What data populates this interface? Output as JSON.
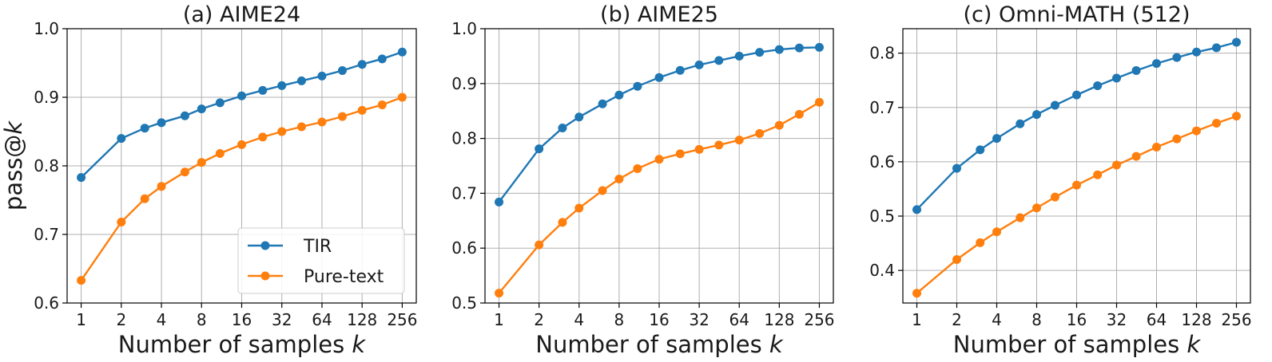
{
  "figure": {
    "ylabel": "pass@k",
    "legend": {
      "placement": "lower-right",
      "entries": [
        {
          "name": "TIR",
          "color": "#1f77b4"
        },
        {
          "name": "Pure-text",
          "color": "#ff7f0e"
        }
      ]
    }
  },
  "chart_data": [
    {
      "type": "line",
      "title": "(a) AIME24",
      "xlabel": "Number of samples k",
      "x_scale": "log2",
      "x": [
        1,
        2,
        3,
        4,
        6,
        8,
        11,
        16,
        23,
        32,
        45,
        64,
        91,
        128,
        181,
        256
      ],
      "xticks": [
        1,
        2,
        4,
        8,
        16,
        32,
        64,
        128,
        256
      ],
      "ylim": [
        0.6,
        1.0
      ],
      "yticks": [
        0.6,
        0.7,
        0.8,
        0.9,
        1.0
      ],
      "grid": true,
      "series": [
        {
          "name": "TIR",
          "color": "#1f77b4",
          "values": [
            0.783,
            0.84,
            0.855,
            0.863,
            0.873,
            0.883,
            0.892,
            0.902,
            0.91,
            0.917,
            0.924,
            0.931,
            0.939,
            0.948,
            0.956,
            0.966
          ]
        },
        {
          "name": "Pure-text",
          "color": "#ff7f0e",
          "values": [
            0.633,
            0.718,
            0.752,
            0.77,
            0.791,
            0.805,
            0.818,
            0.831,
            0.842,
            0.85,
            0.857,
            0.864,
            0.872,
            0.881,
            0.889,
            0.9
          ]
        }
      ]
    },
    {
      "type": "line",
      "title": "(b) AIME25",
      "xlabel": "Number of samples k",
      "x_scale": "log2",
      "x": [
        1,
        2,
        3,
        4,
        6,
        8,
        11,
        16,
        23,
        32,
        45,
        64,
        91,
        128,
        181,
        256
      ],
      "xticks": [
        1,
        2,
        4,
        8,
        16,
        32,
        64,
        128,
        256
      ],
      "ylim": [
        0.5,
        1.0
      ],
      "yticks": [
        0.5,
        0.6,
        0.7,
        0.8,
        0.9,
        1.0
      ],
      "grid": true,
      "series": [
        {
          "name": "TIR",
          "color": "#1f77b4",
          "values": [
            0.684,
            0.781,
            0.819,
            0.839,
            0.863,
            0.879,
            0.895,
            0.911,
            0.924,
            0.934,
            0.942,
            0.95,
            0.957,
            0.962,
            0.965,
            0.966
          ]
        },
        {
          "name": "Pure-text",
          "color": "#ff7f0e",
          "values": [
            0.518,
            0.606,
            0.647,
            0.673,
            0.705,
            0.726,
            0.745,
            0.762,
            0.772,
            0.78,
            0.788,
            0.797,
            0.809,
            0.824,
            0.844,
            0.866
          ]
        }
      ]
    },
    {
      "type": "line",
      "title": "(c) Omni-MATH (512)",
      "xlabel": "Number of samples k",
      "x_scale": "log2",
      "x": [
        1,
        2,
        3,
        4,
        6,
        8,
        11,
        16,
        23,
        32,
        45,
        64,
        91,
        128,
        181,
        256
      ],
      "xticks": [
        1,
        2,
        4,
        8,
        16,
        32,
        64,
        128,
        256
      ],
      "ylim": [
        0.34,
        0.845
      ],
      "yticks": [
        0.4,
        0.5,
        0.6,
        0.7,
        0.8
      ],
      "grid": true,
      "series": [
        {
          "name": "TIR",
          "color": "#1f77b4",
          "values": [
            0.512,
            0.588,
            0.622,
            0.643,
            0.67,
            0.687,
            0.704,
            0.723,
            0.74,
            0.754,
            0.768,
            0.781,
            0.792,
            0.802,
            0.81,
            0.82
          ]
        },
        {
          "name": "Pure-text",
          "color": "#ff7f0e",
          "values": [
            0.358,
            0.42,
            0.451,
            0.471,
            0.497,
            0.515,
            0.535,
            0.557,
            0.576,
            0.594,
            0.61,
            0.627,
            0.642,
            0.657,
            0.671,
            0.684
          ]
        }
      ]
    }
  ]
}
